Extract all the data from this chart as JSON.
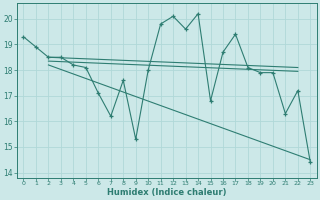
{
  "xlabel": "Humidex (Indice chaleur)",
  "background_color": "#cce8e8",
  "grid_color": "#b0d8d8",
  "line_color": "#2e7d72",
  "xlim": [
    -0.5,
    23.5
  ],
  "ylim": [
    13.8,
    20.6
  ],
  "yticks": [
    14,
    15,
    16,
    17,
    18,
    19,
    20
  ],
  "xtick_labels": [
    "0",
    "1",
    "2",
    "3",
    "4",
    "5",
    "6",
    "7",
    "8",
    "9",
    "10",
    "11",
    "12",
    "13",
    "14",
    "15",
    "16",
    "17",
    "18",
    "19",
    "20",
    "21",
    "22",
    "23"
  ],
  "main_series": [
    19.3,
    18.9,
    18.5,
    18.5,
    18.2,
    18.1,
    17.1,
    16.2,
    17.6,
    15.3,
    18.0,
    19.8,
    20.1,
    19.6,
    20.2,
    16.8,
    18.7,
    19.4,
    18.1,
    17.9,
    17.9,
    16.3,
    17.2,
    14.4
  ],
  "trend_lines": [
    {
      "x0": 2.0,
      "y0": 18.5,
      "x1": 22.0,
      "y1": 18.1
    },
    {
      "x0": 2.0,
      "y0": 18.35,
      "x1": 22.0,
      "y1": 17.95
    },
    {
      "x0": 2.0,
      "y0": 18.2,
      "x1": 23.0,
      "y1": 14.5
    }
  ]
}
